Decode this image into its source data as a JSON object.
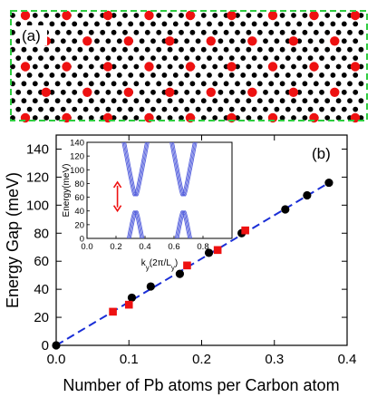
{
  "panel_a": {
    "label": "(a)",
    "border_color": "#2ecc40",
    "carbon_color": "#000000",
    "lead_color": "#ee1111"
  },
  "chart_data": [
    {
      "type": "scatter",
      "panel_label": "(b)",
      "xlabel": "Number of Pb atoms per Carbon atom",
      "ylabel": "Energy Gap (meV)",
      "xlim": [
        0,
        0.4
      ],
      "ylim": [
        0,
        150
      ],
      "xticks": [
        0.0,
        0.1,
        0.2,
        0.3,
        0.4
      ],
      "xtick_labels": [
        "0.0",
        "0.1",
        "0.2",
        "0.3",
        "0.4"
      ],
      "yticks": [
        0,
        20,
        40,
        60,
        80,
        100,
        120,
        140
      ],
      "ytick_labels": [
        "0",
        "20",
        "40",
        "60",
        "80",
        "100",
        "120",
        "140"
      ],
      "grid": false,
      "series": [
        {
          "marker": "circle",
          "color": "#000000",
          "x": [
            0.0,
            0.104,
            0.13,
            0.17,
            0.21,
            0.255,
            0.315,
            0.345,
            0.375
          ],
          "y": [
            0,
            34,
            42,
            51,
            66,
            80,
            97,
            107,
            116
          ]
        },
        {
          "marker": "square",
          "color": "#ee1111",
          "x": [
            0.078,
            0.1,
            0.18,
            0.222,
            0.26
          ],
          "y": [
            24,
            29,
            57,
            68,
            82
          ]
        }
      ],
      "fit_line": {
        "style": "dashed",
        "color": "#1a2ed6",
        "x": [
          0.0,
          0.375
        ],
        "y": [
          0,
          116
        ]
      }
    },
    {
      "type": "line",
      "xlabel": "k_y(2π/L_y)",
      "ylabel": "Energy(meV)",
      "xlim": [
        0,
        1
      ],
      "ylim": [
        0,
        140
      ],
      "xticks": [
        0.0,
        0.2,
        0.4,
        0.6,
        0.8
      ],
      "xtick_labels": [
        "0.0",
        "0.2",
        "0.4",
        "0.6",
        "0.8"
      ],
      "yticks": [
        0,
        20,
        40,
        60,
        80,
        100,
        120,
        140
      ],
      "ytick_labels": [
        "0",
        "20",
        "40",
        "60",
        "80",
        "100",
        "120",
        "140"
      ],
      "line_color": "#5560dd",
      "arrow_color": "#ee1111",
      "band_crossings": [
        {
          "k": 0.335,
          "gap_bottom": 40,
          "gap_top": 62,
          "slope": 1100
        },
        {
          "k": 0.665,
          "gap_bottom": 40,
          "gap_top": 62,
          "slope": 1100
        }
      ],
      "arrow_span": [
        40,
        82
      ]
    }
  ]
}
